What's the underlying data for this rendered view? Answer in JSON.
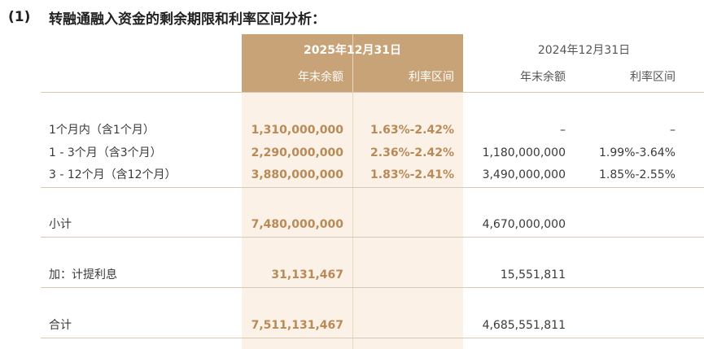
{
  "section": {
    "number": "(1)",
    "title": "转融通融入资金的剩余期限和利率区间分析："
  },
  "header": {
    "current_date": "2025年12月31日",
    "prior_date": "2024年12月31日",
    "col_balance": "年末余额",
    "col_rate": "利率区间"
  },
  "rows": [
    {
      "label": "1个月内（含1个月）",
      "cur_balance": "1,310,000,000",
      "cur_rate": "1.63%-2.42%",
      "prior_balance": "–",
      "prior_rate": "–"
    },
    {
      "label": "1 - 3个月（含3个月）",
      "cur_balance": "2,290,000,000",
      "cur_rate": "2.36%-2.42%",
      "prior_balance": "1,180,000,000",
      "prior_rate": "1.99%-3.64%"
    },
    {
      "label": "3 - 12个月（含12个月）",
      "cur_balance": "3,880,000,000",
      "cur_rate": "1.83%-2.41%",
      "prior_balance": "3,490,000,000",
      "prior_rate": "1.85%-2.55%"
    }
  ],
  "subtotal": {
    "label": "小计",
    "cur_balance": "7,480,000,000",
    "prior_balance": "4,670,000,000"
  },
  "interest": {
    "label": "加：计提利息",
    "cur_balance": "31,131,467",
    "prior_balance": "15,551,811"
  },
  "total": {
    "label": "合计",
    "cur_balance": "7,511,131,467",
    "prior_balance": "4,685,551,811"
  },
  "colors": {
    "accent": "#c9a378",
    "highlight_bg": "#fbf1e6",
    "highlight_text": "#b88a57"
  }
}
